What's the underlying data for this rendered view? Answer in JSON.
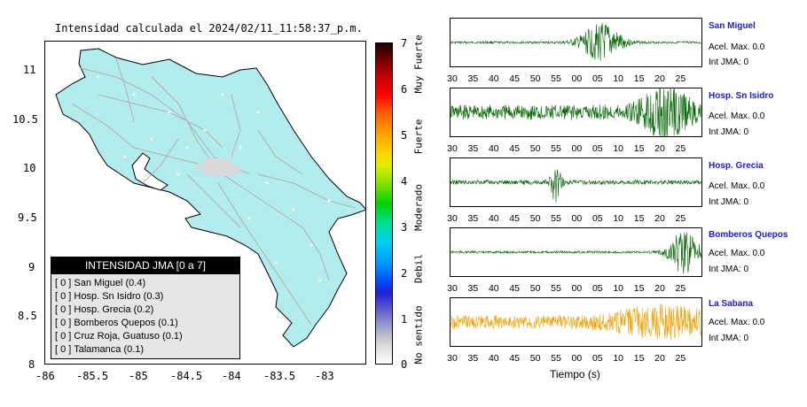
{
  "map": {
    "title": "Intensidad calculada el 2024/02/11_11:58:37_p.m.",
    "y_ticks": [
      "11",
      "10.5",
      "10",
      "9.5",
      "9",
      "8.5",
      "8"
    ],
    "x_ticks": [
      "-86",
      "-85.5",
      "-85",
      "-84.5",
      "-84",
      "-83.5",
      "-83"
    ],
    "land_color": "#b3ecec",
    "road_color": "#b0b0b0"
  },
  "legend": {
    "header": "INTENSIDAD JMA [0 a 7]",
    "rows": [
      {
        "value": "[ 0 ]",
        "name": "San Miguel (0.4)"
      },
      {
        "value": "[ 0 ]",
        "name": "Hosp. Sn Isidro (0.3)"
      },
      {
        "value": "[ 0 ]",
        "name": "Hosp. Grecia (0.2)"
      },
      {
        "value": "[ 0 ]",
        "name": "Bomberos Quepos (0.1)"
      },
      {
        "value": "[ 0 ]",
        "name": "Cruz Roja, Guatuso (0.1)"
      },
      {
        "value": "[ 0 ]",
        "name": "Talamanca (0.1)"
      }
    ]
  },
  "colorbar": {
    "numbers": [
      "7",
      "6",
      "5",
      "4",
      "3",
      "2",
      "1",
      "0"
    ],
    "words": [
      "Muy Fuerte",
      "Fuerte",
      "Moderado",
      "Debil",
      "No sentido"
    ]
  },
  "traces": {
    "x_ticks": [
      "30",
      "35",
      "40",
      "45",
      "50",
      "55",
      "00",
      "05",
      "10",
      "15",
      "20",
      "25"
    ],
    "xlabel": "Tiempo (s)",
    "stations": [
      {
        "name": "San Miguel",
        "acel": "Acel. Max. 0.0",
        "int": "Int JMA: 0",
        "color": "#006400",
        "burst_center": 0.6,
        "burst_width": 0.08,
        "burst_amp": 0.85,
        "noise": 0.05
      },
      {
        "name": "Hosp. Sn Isidro",
        "acel": "Acel. Max. 0.0",
        "int": "Int JMA: 0",
        "color": "#006400",
        "burst_center": 0.86,
        "burst_width": 0.1,
        "burst_amp": 0.9,
        "noise": 0.35
      },
      {
        "name": "Hosp. Grecia",
        "acel": "Acel. Max. 0.0",
        "int": "Int JMA: 0",
        "color": "#006400",
        "burst_center": 0.42,
        "burst_width": 0.02,
        "burst_amp": 0.9,
        "noise": 0.1
      },
      {
        "name": "Bomberos Quepos",
        "acel": "Acel. Max. 0.0",
        "int": "Int JMA: 0",
        "color": "#006400",
        "burst_center": 0.93,
        "burst_width": 0.06,
        "burst_amp": 0.95,
        "noise": 0.05
      },
      {
        "name": "La Sabana",
        "acel": "Acel. Max. 0.0",
        "int": "Int JMA: 0",
        "color": "#f0a000",
        "burst_center": 0.85,
        "burst_width": 0.2,
        "burst_amp": 0.55,
        "noise": 0.3
      }
    ]
  }
}
